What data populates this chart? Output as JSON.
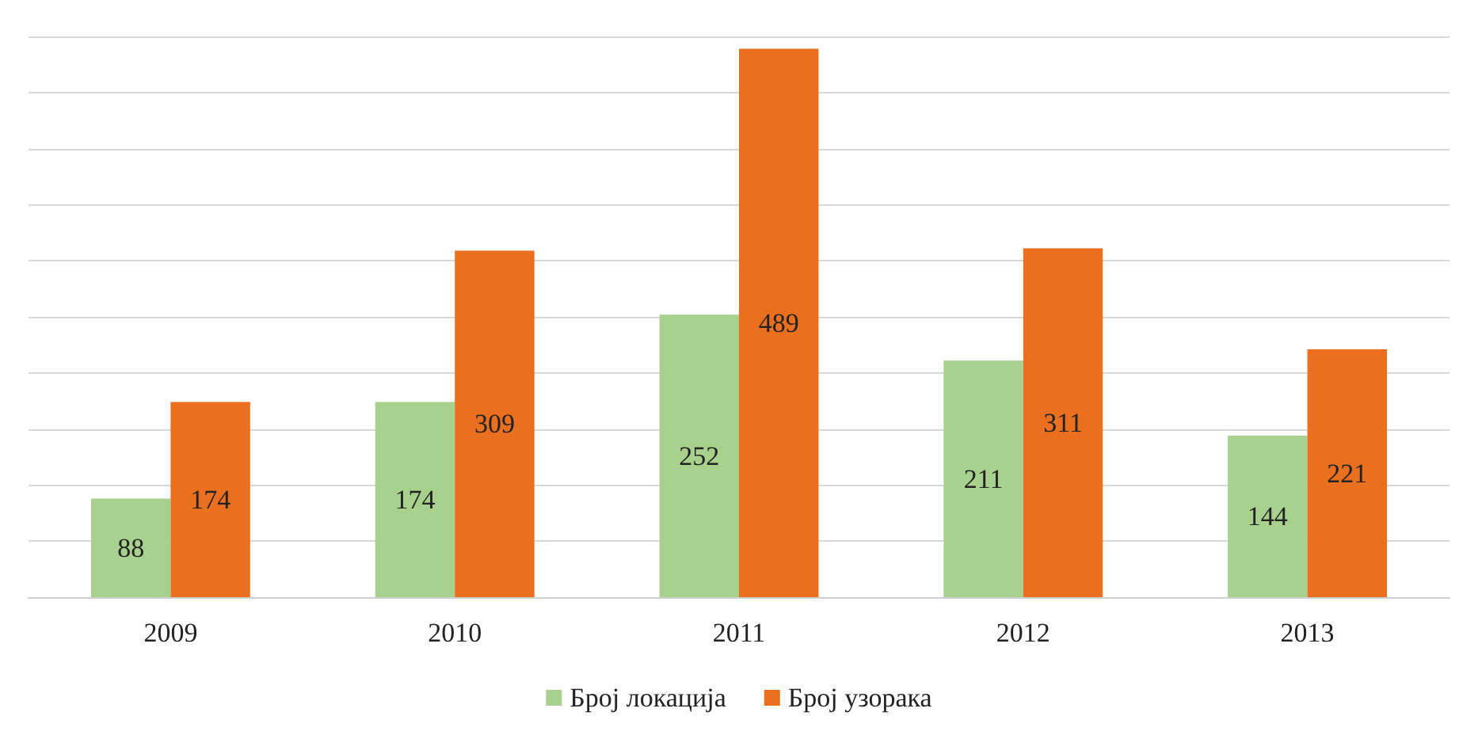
{
  "chart_data": {
    "type": "bar",
    "categories": [
      "2009",
      "2010",
      "2011",
      "2012",
      "2013"
    ],
    "series": [
      {
        "name": "Број локација",
        "color": "#a9d18e",
        "values": [
          88,
          174,
          252,
          211,
          144
        ]
      },
      {
        "name": "Број узорака",
        "color": "#ea7020",
        "values": [
          174,
          309,
          489,
          311,
          221
        ]
      }
    ],
    "ylim": [
      0,
      500
    ],
    "yticks": [
      {
        "value": 0,
        "label": null
      },
      {
        "value": 50,
        "label": null
      },
      {
        "value": 100,
        "label": null
      },
      {
        "value": 150,
        "label": null
      },
      {
        "value": 200,
        "label": null
      },
      {
        "value": 250,
        "label": null
      },
      {
        "value": 300,
        "label": null
      },
      {
        "value": 350,
        "label": null
      },
      {
        "value": 400,
        "label": null
      },
      {
        "value": 450,
        "label": null
      },
      {
        "value": 500,
        "label": null
      }
    ],
    "grid": "y",
    "legend": "bottom",
    "data_labels": true,
    "tick_labels": "x"
  }
}
